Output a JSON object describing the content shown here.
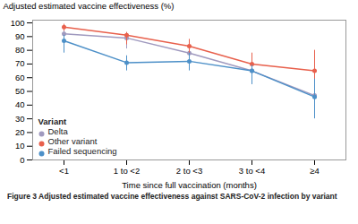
{
  "chart_data": {
    "type": "line",
    "caption": "Figure 3 Adjusted estimated vaccine effectiveness against SARS-CoV-2 infection by variant",
    "xlabel": "Time since full vaccination (months)",
    "ylabel": "Adjusted estimated vaccine effectiveness (%)",
    "categories": [
      "<1",
      "1 to <2",
      "2 to <3",
      "3 to <4",
      "≥4"
    ],
    "series": [
      {
        "name": "Delta",
        "color": "#a09abf",
        "values": [
          92,
          89,
          78,
          65,
          47
        ],
        "yerr_low": [
          5,
          8,
          7,
          10,
          7
        ],
        "yerr_high": [
          4,
          4,
          5,
          5,
          5
        ]
      },
      {
        "name": "Other variant",
        "color": "#e8604c",
        "values": [
          97,
          91,
          83,
          70,
          65
        ],
        "yerr_low": [
          3,
          7,
          7,
          10,
          20
        ],
        "yerr_high": [
          2,
          2,
          5,
          8,
          15
        ]
      },
      {
        "name": "Failed sequencing",
        "color": "#4d90c8",
        "values": [
          87,
          71,
          72,
          65,
          46
        ],
        "yerr_low": [
          9,
          6,
          7,
          10,
          16
        ],
        "yerr_high": [
          4,
          5,
          6,
          4,
          13
        ]
      }
    ],
    "ylim": [
      0,
      102
    ],
    "yticks": [
      0,
      10,
      20,
      30,
      40,
      50,
      60,
      70,
      80,
      90,
      100
    ],
    "legend": "lower left",
    "legend_title": "Variant",
    "marker": "circle",
    "grid": false
  }
}
